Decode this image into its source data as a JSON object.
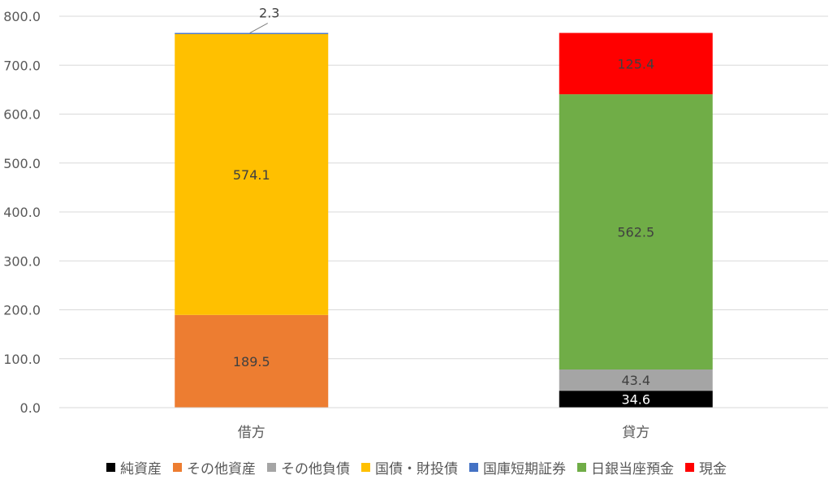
{
  "chart_data": {
    "type": "bar",
    "stacked": true,
    "categories": [
      "借方",
      "貸方"
    ],
    "ylim": [
      0,
      800
    ],
    "yticks": [
      "0.0",
      "100.0",
      "200.0",
      "300.0",
      "400.0",
      "500.0",
      "600.0",
      "700.0",
      "800.0"
    ],
    "grid": true,
    "legend_position": "bottom",
    "series": [
      {
        "name": "純資産",
        "color": "#000000",
        "values": [
          0,
          34.6
        ],
        "labels": [
          "",
          "34.6"
        ]
      },
      {
        "name": "その他資産",
        "color": "#ED7D31",
        "values": [
          189.5,
          0
        ],
        "labels": [
          "189.5",
          ""
        ]
      },
      {
        "name": "その他負債",
        "color": "#A5A5A5",
        "values": [
          0,
          43.4
        ],
        "labels": [
          "",
          "43.4"
        ]
      },
      {
        "name": "国債・財投債",
        "color": "#FFC000",
        "values": [
          574.1,
          0
        ],
        "labels": [
          "574.1",
          ""
        ]
      },
      {
        "name": "国庫短期証券",
        "color": "#4472C4",
        "values": [
          2.3,
          0
        ],
        "labels": [
          "2.3",
          ""
        ]
      },
      {
        "name": "日銀当座預金",
        "color": "#70AD47",
        "values": [
          0,
          562.5
        ],
        "labels": [
          "",
          "562.5"
        ]
      },
      {
        "name": "現金",
        "color": "#FF0000",
        "values": [
          0,
          125.4
        ],
        "labels": [
          "",
          "125.4"
        ]
      }
    ]
  }
}
